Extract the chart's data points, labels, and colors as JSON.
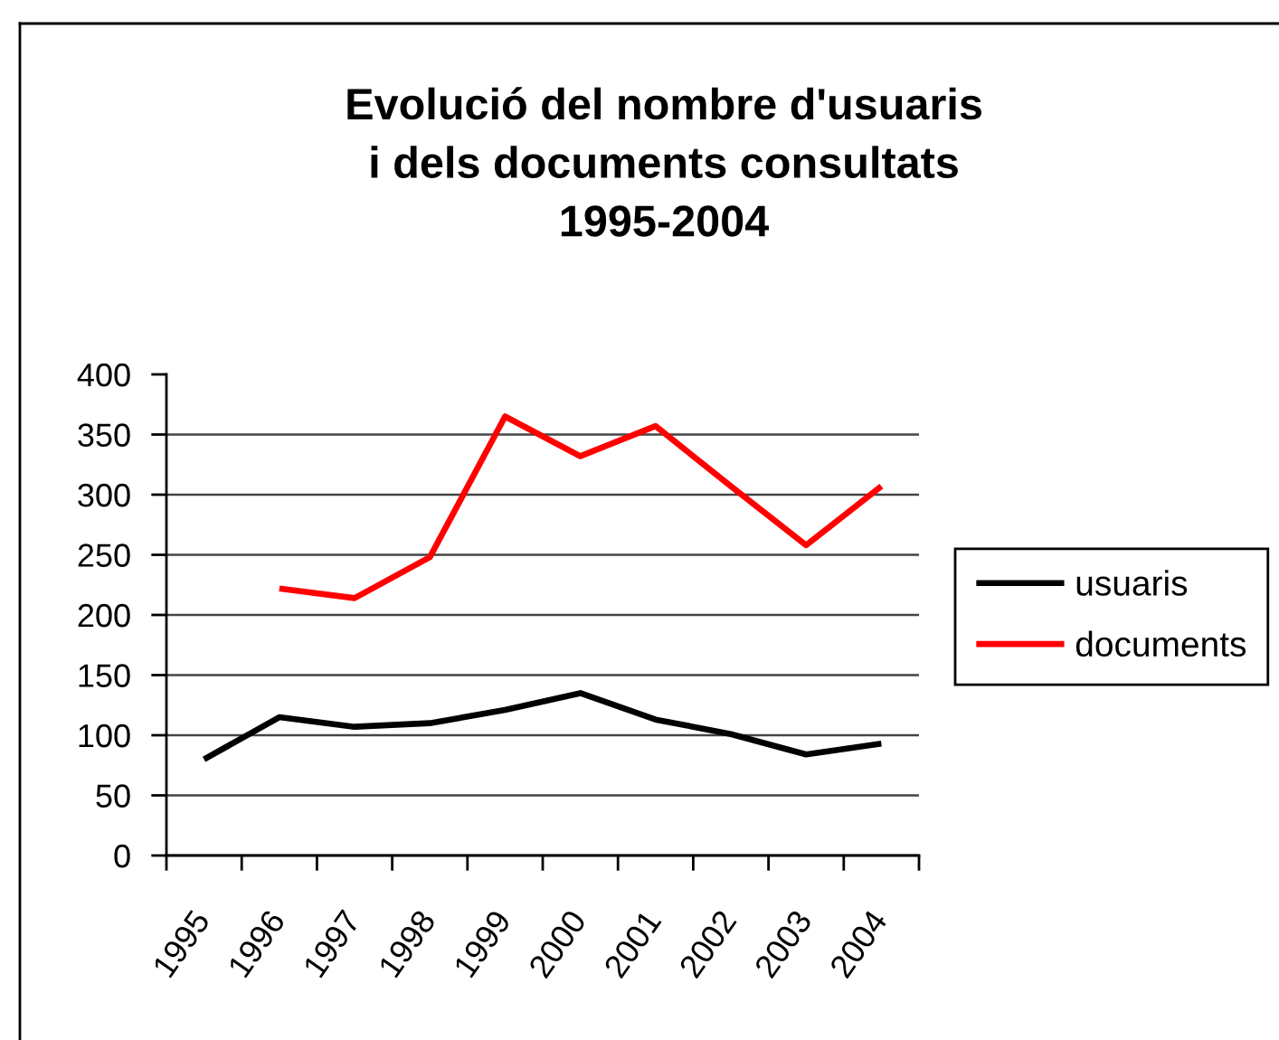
{
  "chart_data": {
    "type": "line",
    "title": "Evolució del nombre d'usuaris\ni dels documents consultats\n1995-2004",
    "categories": [
      "1995",
      "1996",
      "1997",
      "1998",
      "1999",
      "2000",
      "2001",
      "2002",
      "2003",
      "2004"
    ],
    "series": [
      {
        "name": "usuaris",
        "color": "#000000",
        "values": [
          80,
          115,
          107,
          110,
          121,
          135,
          113,
          101,
          84,
          93
        ]
      },
      {
        "name": "documents",
        "color": "#ff0000",
        "values": [
          null,
          222,
          214,
          248,
          365,
          332,
          357,
          307,
          258,
          307
        ]
      }
    ],
    "ylim": [
      0,
      400
    ],
    "yticks": [
      0,
      50,
      100,
      150,
      200,
      250,
      300,
      350,
      400
    ],
    "grid": "y",
    "legend": "right",
    "line_style": "solid"
  }
}
